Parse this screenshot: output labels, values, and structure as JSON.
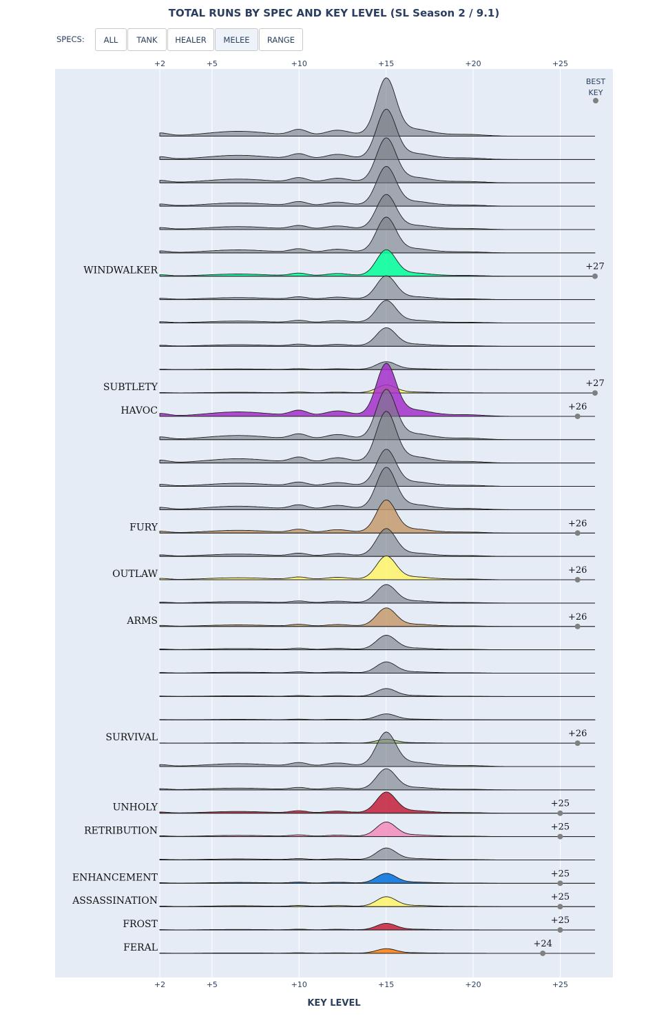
{
  "title": "TOTAL RUNS BY SPEC AND KEY LEVEL (SL Season 2 / 9.1)",
  "specs_label": "SPECS:",
  "spec_buttons": [
    "ALL",
    "TANK",
    "HEALER",
    "MELEE",
    "RANGE"
  ],
  "active_spec": "MELEE",
  "best_key_label": [
    "BEST",
    "KEY"
  ],
  "chart_data": {
    "type": "area",
    "subtype": "ridgeline",
    "xlabel": "KEY LEVEL",
    "x_ticks": [
      {
        "value": 2,
        "label": "+2"
      },
      {
        "value": 5,
        "label": "+5"
      },
      {
        "value": 10,
        "label": "+10"
      },
      {
        "value": 15,
        "label": "+15"
      },
      {
        "value": 20,
        "label": "+20"
      },
      {
        "value": 25,
        "label": "+25"
      }
    ],
    "xlim": [
      2,
      27
    ],
    "grid": true,
    "series": [
      {
        "name": "",
        "color": "#777d84",
        "peak": 15,
        "height": 88,
        "best_key": null
      },
      {
        "name": "",
        "color": "#777d84",
        "peak": 15,
        "height": 76,
        "best_key": null
      },
      {
        "name": "",
        "color": "#777d84",
        "peak": 15,
        "height": 68,
        "best_key": null
      },
      {
        "name": "",
        "color": "#777d84",
        "peak": 15,
        "height": 60,
        "best_key": null
      },
      {
        "name": "",
        "color": "#777d84",
        "peak": 15,
        "height": 53,
        "best_key": null
      },
      {
        "name": "",
        "color": "#777d84",
        "peak": 15,
        "height": 54,
        "best_key": null
      },
      {
        "name": "WINDWALKER",
        "color": "#00ff98",
        "peak": 15,
        "height": 40,
        "best_key": 27,
        "best_key_label": "+27"
      },
      {
        "name": "",
        "color": "#777d84",
        "peak": 15,
        "height": 36,
        "best_key": null
      },
      {
        "name": "",
        "color": "#777d84",
        "peak": 15,
        "height": 34,
        "best_key": null
      },
      {
        "name": "",
        "color": "#777d84",
        "peak": 15,
        "height": 28,
        "best_key": null
      },
      {
        "name": "",
        "color": "#777d84",
        "peak": 15,
        "height": 12,
        "best_key": null
      },
      {
        "name": "SUBTLETY",
        "color": "#fff468",
        "peak": 15,
        "height": 12,
        "best_key": 27,
        "best_key_label": "+27"
      },
      {
        "name": "HAVOC",
        "color": "#a330c9",
        "peak": 15,
        "height": 80,
        "best_key": 26,
        "best_key_label": "+26"
      },
      {
        "name": "",
        "color": "#777d84",
        "peak": 15,
        "height": 76,
        "best_key": null
      },
      {
        "name": "",
        "color": "#777d84",
        "peak": 15,
        "height": 78,
        "best_key": null
      },
      {
        "name": "",
        "color": "#777d84",
        "peak": 15,
        "height": 56,
        "best_key": null
      },
      {
        "name": "",
        "color": "#777d84",
        "peak": 15,
        "height": 64,
        "best_key": null
      },
      {
        "name": "FURY",
        "color": "#c69b6d",
        "peak": 15,
        "height": 50,
        "best_key": 26,
        "best_key_label": "+26"
      },
      {
        "name": "",
        "color": "#777d84",
        "peak": 15,
        "height": 42,
        "best_key": null
      },
      {
        "name": "OUTLAW",
        "color": "#fff468",
        "peak": 15,
        "height": 36,
        "best_key": 26,
        "best_key_label": "+26"
      },
      {
        "name": "",
        "color": "#777d84",
        "peak": 15,
        "height": 28,
        "best_key": null
      },
      {
        "name": "ARMS",
        "color": "#c69b6d",
        "peak": 15,
        "height": 28,
        "best_key": 26,
        "best_key_label": "+26"
      },
      {
        "name": "",
        "color": "#777d84",
        "peak": 15,
        "height": 22,
        "best_key": null
      },
      {
        "name": "",
        "color": "#777d84",
        "peak": 15,
        "height": 17,
        "best_key": null
      },
      {
        "name": "",
        "color": "#777d84",
        "peak": 15,
        "height": 12,
        "best_key": null
      },
      {
        "name": "",
        "color": "#777d84",
        "peak": 15,
        "height": 9,
        "best_key": null
      },
      {
        "name": "SURVIVAL",
        "color": "#aad372",
        "peak": 15,
        "height": 6,
        "best_key": 26,
        "best_key_label": "+26"
      },
      {
        "name": "",
        "color": "#777d84",
        "peak": 15,
        "height": 52,
        "best_key": null
      },
      {
        "name": "",
        "color": "#777d84",
        "peak": 15,
        "height": 32,
        "best_key": null
      },
      {
        "name": "UNHOLY",
        "color": "#c41e3a",
        "peak": 15,
        "height": 32,
        "best_key": 25,
        "best_key_label": "+25"
      },
      {
        "name": "RETRIBUTION",
        "color": "#f48cba",
        "peak": 15,
        "height": 22,
        "best_key": 25,
        "best_key_label": "+25"
      },
      {
        "name": "",
        "color": "#777d84",
        "peak": 15,
        "height": 18,
        "best_key": null
      },
      {
        "name": "ENHANCEMENT",
        "color": "#0070dd",
        "peak": 15,
        "height": 15,
        "best_key": 25,
        "best_key_label": "+25"
      },
      {
        "name": "ASSASSINATION",
        "color": "#fff468",
        "peak": 15,
        "height": 15,
        "best_key": 25,
        "best_key_label": "+25"
      },
      {
        "name": "FROST",
        "color": "#c41e3a",
        "peak": 15,
        "height": 10,
        "best_key": 25,
        "best_key_label": "+25"
      },
      {
        "name": "FERAL",
        "color": "#ff7c0a",
        "peak": 15,
        "height": 7,
        "best_key": 24,
        "best_key_label": "+24"
      }
    ]
  }
}
